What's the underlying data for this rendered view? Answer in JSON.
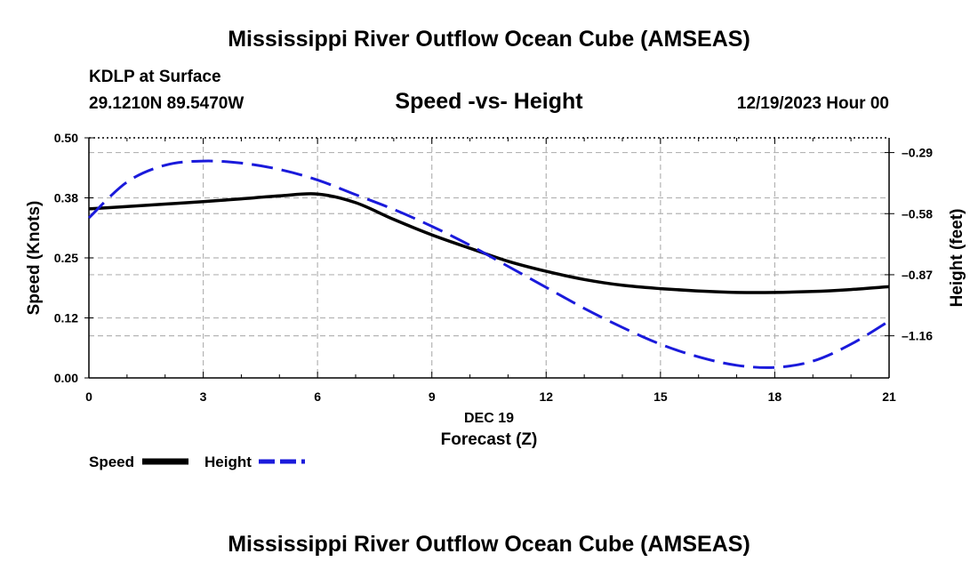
{
  "header": {
    "title": "Mississippi River Outflow Ocean Cube (AMSEAS)",
    "station": "KDLP at Surface",
    "coords": "29.1210N  89.5470W",
    "subtitle": "Speed -vs- Height",
    "datetime": "12/19/2023 Hour 00"
  },
  "footer": {
    "title": "Mississippi River Outflow Ocean Cube (AMSEAS)"
  },
  "colors": {
    "speed": "#000000",
    "height": "#1a1adb",
    "grid": "#b4b4b4"
  },
  "chart_data": {
    "type": "line",
    "title": "Speed -vs- Height",
    "xlabel": "Forecast (Z)",
    "xlabel_date": "DEC 19",
    "ylabel": "Speed (Knots)",
    "y2label": "Height (feet)",
    "xlim": [
      0,
      21
    ],
    "ylim": [
      0,
      0.5
    ],
    "y2lim": [
      -1.36,
      -0.22
    ],
    "x_ticks": [
      0,
      3,
      6,
      9,
      12,
      15,
      18,
      21
    ],
    "x_tick_labels": [
      "0",
      "3",
      "6",
      "9",
      "12",
      "15",
      "18",
      "21"
    ],
    "y_ticks": [
      0,
      0.125,
      0.25,
      0.375,
      0.5
    ],
    "y_tick_labels": [
      "0.00",
      "0.12",
      "0.25",
      "0.38",
      "0.50"
    ],
    "y2_ticks": [
      -0.29,
      -0.58,
      -0.87,
      -1.16
    ],
    "y2_tick_labels": [
      "-0.29",
      "-0.58",
      "-0.87",
      "-1.16"
    ],
    "grid": true,
    "legend": "bottom-left",
    "series": [
      {
        "name": "Speed",
        "axis": "left",
        "style": "solid",
        "x": [
          0,
          1,
          2,
          3,
          4,
          5,
          6,
          7,
          8,
          9,
          10,
          11,
          12,
          13,
          14,
          15,
          16,
          17,
          18,
          19,
          20,
          21
        ],
        "values": [
          0.352,
          0.357,
          0.362,
          0.367,
          0.373,
          0.379,
          0.383,
          0.365,
          0.33,
          0.298,
          0.27,
          0.243,
          0.222,
          0.205,
          0.193,
          0.186,
          0.181,
          0.178,
          0.178,
          0.18,
          0.184,
          0.19
        ]
      },
      {
        "name": "Height",
        "axis": "right",
        "style": "dashed",
        "x": [
          0,
          1,
          2,
          3,
          4,
          5,
          6,
          7,
          8,
          9,
          10,
          11,
          12,
          13,
          14,
          15,
          16,
          17,
          18,
          19,
          20,
          21
        ],
        "values": [
          -0.6,
          -0.43,
          -0.35,
          -0.33,
          -0.34,
          -0.37,
          -0.42,
          -0.49,
          -0.56,
          -0.64,
          -0.73,
          -0.83,
          -0.93,
          -1.03,
          -1.12,
          -1.2,
          -1.26,
          -1.3,
          -1.31,
          -1.28,
          -1.2,
          -1.09
        ]
      }
    ]
  }
}
